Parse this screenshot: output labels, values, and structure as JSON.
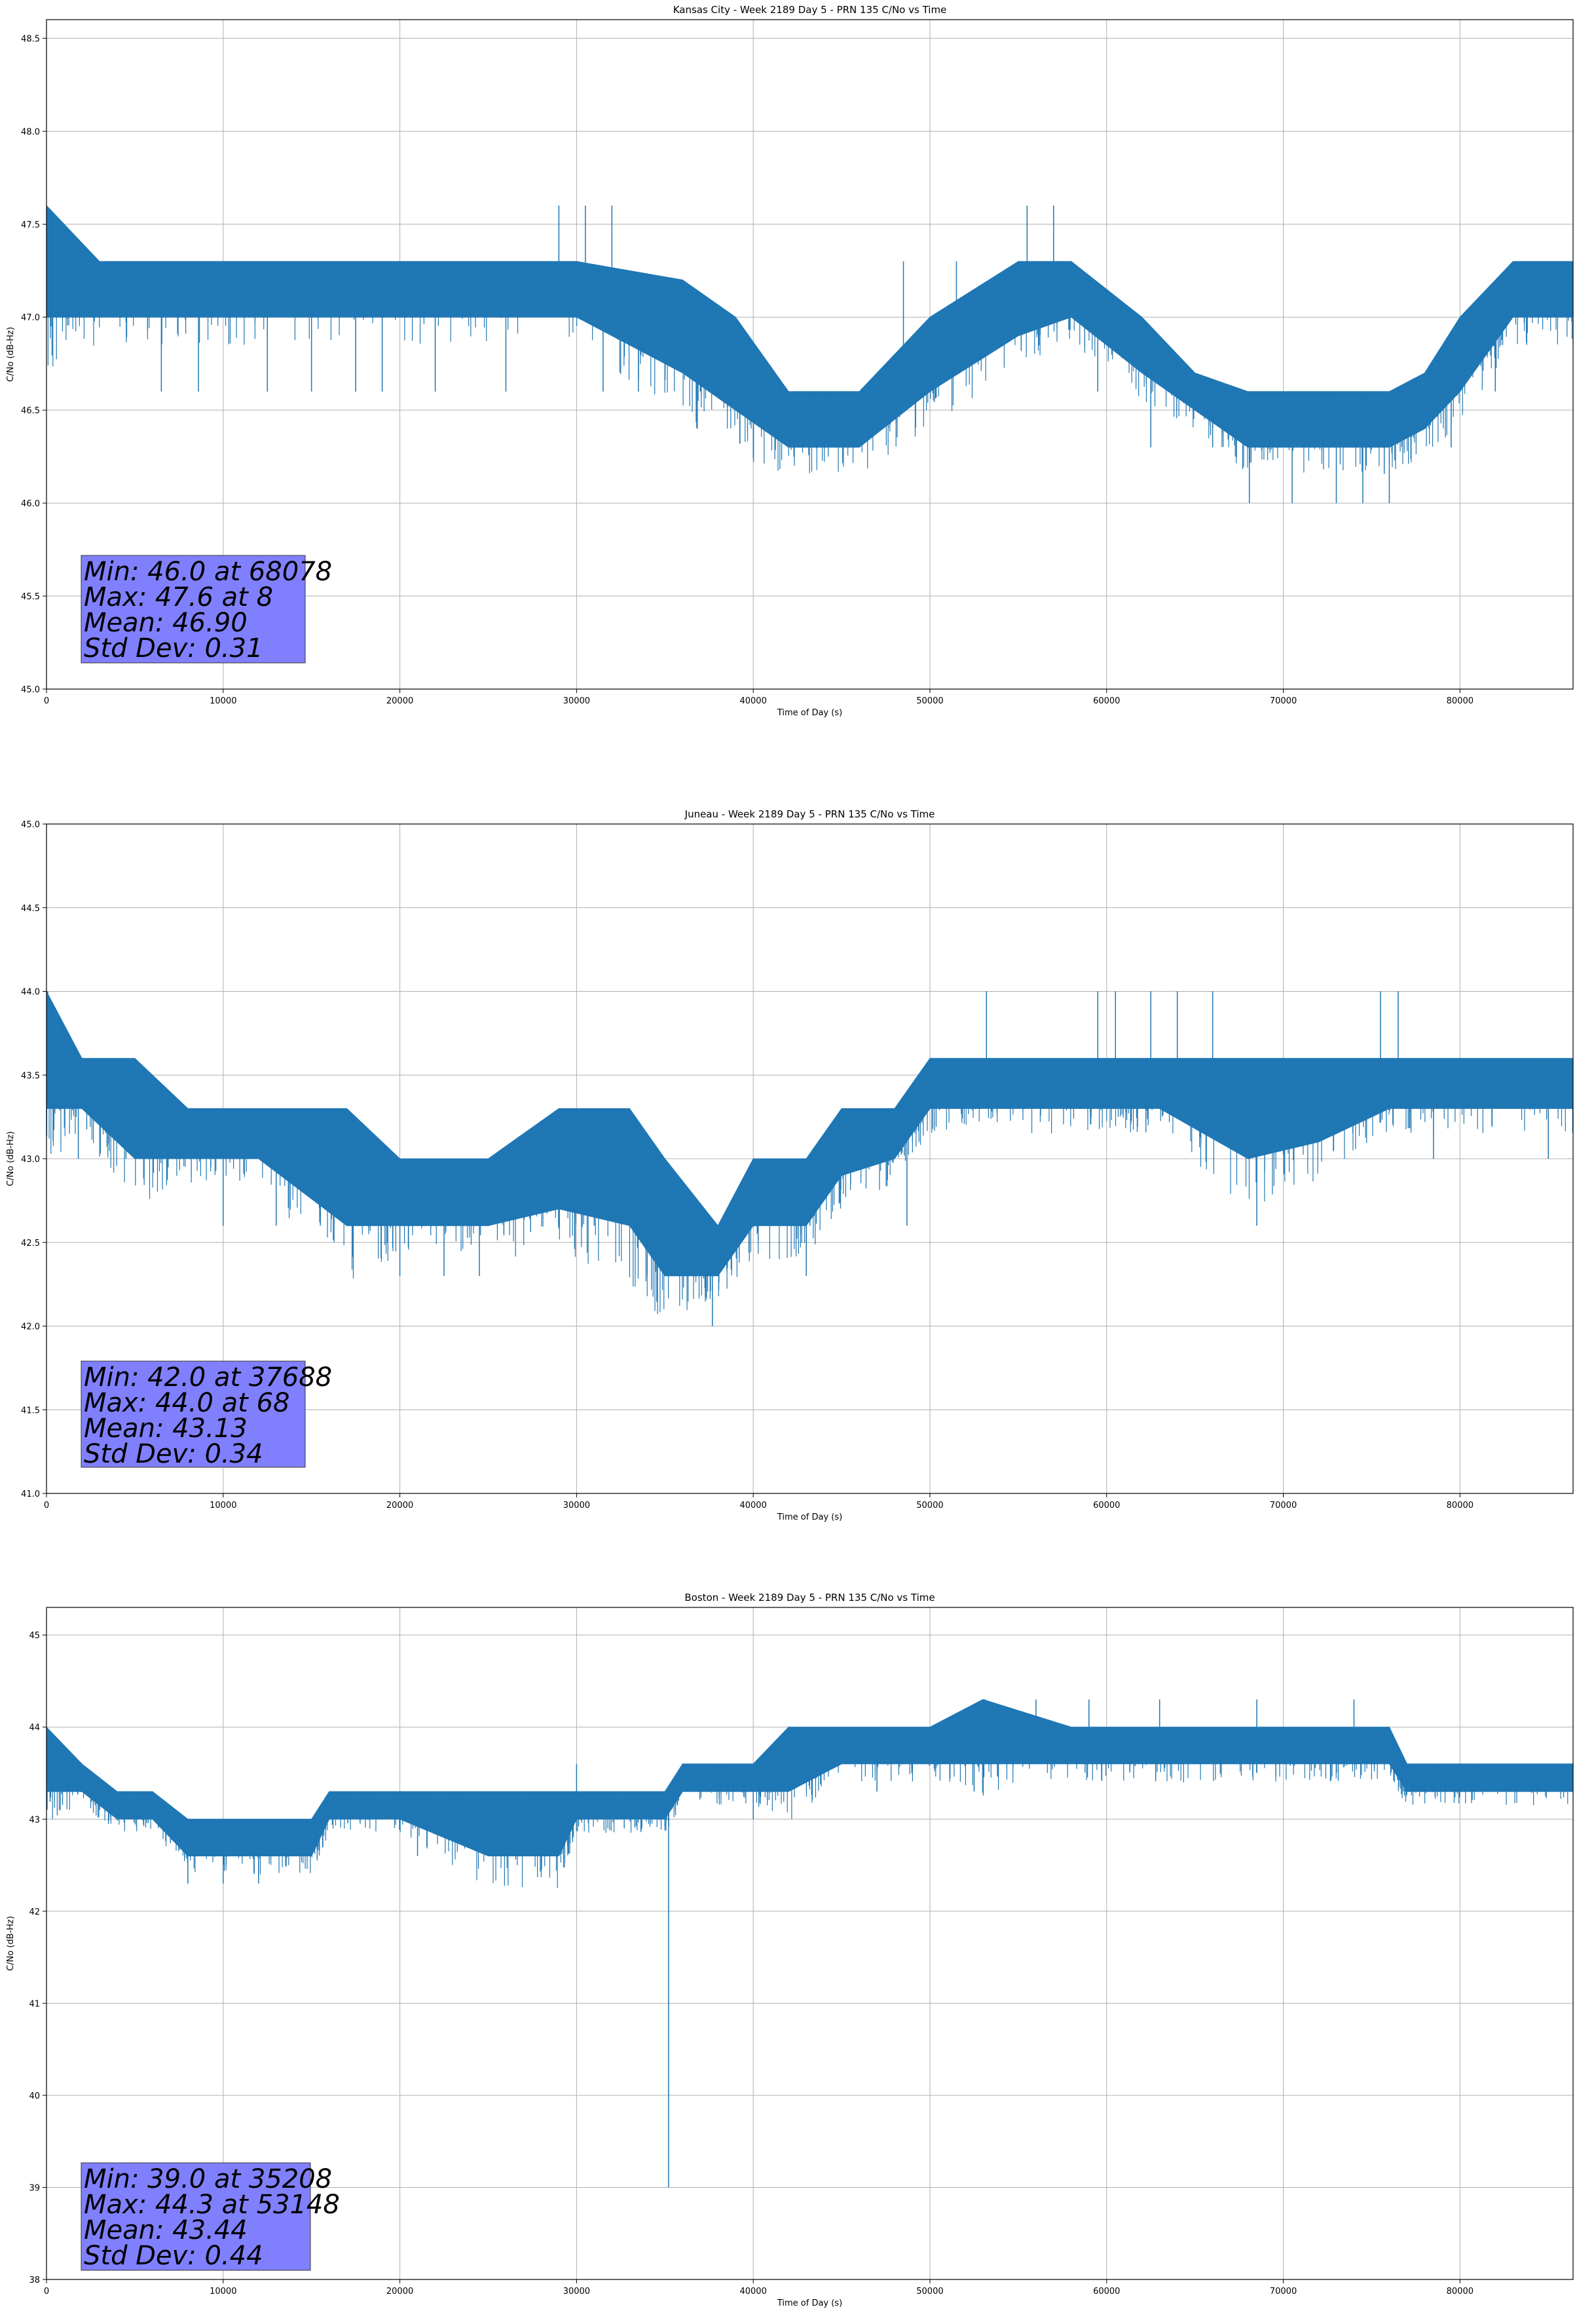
{
  "chart_data": [
    {
      "type": "line",
      "title": "Kansas City - Week 2189 Day 5 - PRN 135 C/No vs Time",
      "xlabel": "Time of Day (s)",
      "ylabel": "C/No (dB-Hz)",
      "xlim": [
        0,
        86400
      ],
      "ylim": [
        45.0,
        48.6
      ],
      "xticks": [
        0,
        10000,
        20000,
        30000,
        40000,
        50000,
        60000,
        70000,
        80000
      ],
      "yticks": [
        45.0,
        45.5,
        46.0,
        46.5,
        47.0,
        47.5,
        48.0,
        48.5
      ],
      "ytick_labels": [
        "45.0",
        "45.5",
        "46.0",
        "46.5",
        "47.0",
        "47.5",
        "48.0",
        "48.5"
      ],
      "grid": true,
      "color": "#1f77b4",
      "band": {
        "x": [
          0,
          3000,
          10000,
          20000,
          30000,
          36000,
          39000,
          42000,
          46000,
          50000,
          55000,
          58000,
          62000,
          65000,
          68000,
          72000,
          76000,
          78000,
          80000,
          83000,
          86400
        ],
        "low": [
          47.0,
          47.0,
          47.0,
          47.0,
          47.0,
          46.7,
          46.5,
          46.3,
          46.3,
          46.6,
          46.9,
          47.0,
          46.7,
          46.5,
          46.3,
          46.3,
          46.3,
          46.4,
          46.6,
          47.0,
          47.0
        ],
        "high": [
          47.6,
          47.3,
          47.3,
          47.3,
          47.3,
          47.2,
          47.0,
          46.6,
          46.6,
          47.0,
          47.3,
          47.3,
          47.0,
          46.7,
          46.6,
          46.6,
          46.6,
          46.7,
          47.0,
          47.3,
          47.3
        ]
      },
      "outliers": [
        {
          "x": 6500,
          "y": 46.6
        },
        {
          "x": 8600,
          "y": 46.6
        },
        {
          "x": 12500,
          "y": 46.6
        },
        {
          "x": 15000,
          "y": 46.6
        },
        {
          "x": 17500,
          "y": 46.6
        },
        {
          "x": 19000,
          "y": 46.6
        },
        {
          "x": 22000,
          "y": 46.6
        },
        {
          "x": 26000,
          "y": 46.6
        },
        {
          "x": 29000,
          "y": 47.6
        },
        {
          "x": 30500,
          "y": 47.6
        },
        {
          "x": 31500,
          "y": 46.6
        },
        {
          "x": 32000,
          "y": 47.6
        },
        {
          "x": 33500,
          "y": 46.6
        },
        {
          "x": 37000,
          "y": 46.6
        },
        {
          "x": 45500,
          "y": 46.3
        },
        {
          "x": 48500,
          "y": 47.3
        },
        {
          "x": 51500,
          "y": 47.3
        },
        {
          "x": 55500,
          "y": 47.6
        },
        {
          "x": 57000,
          "y": 47.6
        },
        {
          "x": 59500,
          "y": 46.6
        },
        {
          "x": 62500,
          "y": 46.3
        },
        {
          "x": 66000,
          "y": 46.3
        },
        {
          "x": 68078,
          "y": 46.0
        },
        {
          "x": 70500,
          "y": 46.0
        },
        {
          "x": 73000,
          "y": 46.0
        },
        {
          "x": 74500,
          "y": 46.0
        },
        {
          "x": 76000,
          "y": 46.0
        },
        {
          "x": 79500,
          "y": 46.3
        },
        {
          "x": 82000,
          "y": 46.6
        },
        {
          "x": 8,
          "y": 47.6
        }
      ],
      "stats": [
        "Min: 46.0 at 68078",
        "Max: 47.6 at 8",
        "Mean: 46.90",
        "Std Dev: 0.31"
      ]
    },
    {
      "type": "line",
      "title": "Juneau - Week 2189 Day 5 - PRN 135 C/No vs Time",
      "xlabel": "Time of Day (s)",
      "ylabel": "C/No (dB-Hz)",
      "xlim": [
        0,
        86400
      ],
      "ylim": [
        41.0,
        45.0
      ],
      "xticks": [
        0,
        10000,
        20000,
        30000,
        40000,
        50000,
        60000,
        70000,
        80000
      ],
      "yticks": [
        41.0,
        41.5,
        42.0,
        42.5,
        43.0,
        43.5,
        44.0,
        44.5,
        45.0
      ],
      "ytick_labels": [
        "41.0",
        "41.5",
        "42.0",
        "42.5",
        "43.0",
        "43.5",
        "44.0",
        "44.5",
        "45.0"
      ],
      "grid": true,
      "color": "#1f77b4",
      "band": {
        "x": [
          0,
          2000,
          5000,
          8000,
          12000,
          17000,
          20000,
          25000,
          29000,
          33000,
          35000,
          38000,
          40000,
          43000,
          45000,
          48000,
          50000,
          53000,
          58000,
          61000,
          63000,
          68000,
          72000,
          76000,
          80000,
          86400
        ],
        "low": [
          43.3,
          43.3,
          43.0,
          43.0,
          43.0,
          42.6,
          42.6,
          42.6,
          42.7,
          42.6,
          42.3,
          42.3,
          42.6,
          42.6,
          42.9,
          43.0,
          43.3,
          43.3,
          43.3,
          43.3,
          43.3,
          43.0,
          43.1,
          43.3,
          43.3,
          43.3
        ],
        "high": [
          44.0,
          43.6,
          43.6,
          43.3,
          43.3,
          43.3,
          43.0,
          43.0,
          43.3,
          43.3,
          43.0,
          42.6,
          43.0,
          43.0,
          43.3,
          43.3,
          43.6,
          43.6,
          43.6,
          43.6,
          43.6,
          43.6,
          43.6,
          43.6,
          43.6,
          43.6
        ]
      },
      "outliers": [
        {
          "x": 68,
          "y": 44.0
        },
        {
          "x": 1800,
          "y": 43.0
        },
        {
          "x": 4500,
          "y": 43.0
        },
        {
          "x": 10000,
          "y": 42.6
        },
        {
          "x": 13000,
          "y": 42.6
        },
        {
          "x": 15500,
          "y": 42.6
        },
        {
          "x": 20000,
          "y": 42.3
        },
        {
          "x": 22500,
          "y": 42.3
        },
        {
          "x": 24500,
          "y": 42.3
        },
        {
          "x": 29000,
          "y": 42.6
        },
        {
          "x": 31000,
          "y": 42.6
        },
        {
          "x": 34000,
          "y": 42.3
        },
        {
          "x": 37688,
          "y": 42.0
        },
        {
          "x": 43000,
          "y": 42.3
        },
        {
          "x": 48700,
          "y": 42.6
        },
        {
          "x": 53200,
          "y": 44.0
        },
        {
          "x": 59500,
          "y": 44.0
        },
        {
          "x": 60500,
          "y": 44.0
        },
        {
          "x": 62500,
          "y": 44.0
        },
        {
          "x": 64000,
          "y": 44.0
        },
        {
          "x": 66000,
          "y": 44.0
        },
        {
          "x": 68500,
          "y": 42.6
        },
        {
          "x": 75500,
          "y": 44.0
        },
        {
          "x": 76500,
          "y": 44.0
        },
        {
          "x": 78500,
          "y": 43.0
        },
        {
          "x": 85000,
          "y": 43.0
        }
      ],
      "stats": [
        "Min: 42.0 at 37688",
        "Max: 44.0 at 68",
        "Mean: 43.13",
        "Std Dev: 0.34"
      ]
    },
    {
      "type": "line",
      "title": "Boston - Week 2189 Day 5 - PRN 135 C/No vs Time",
      "xlabel": "Time of Day (s)",
      "ylabel": "C/No (dB-Hz)",
      "xlim": [
        0,
        86400
      ],
      "ylim": [
        38,
        45.3
      ],
      "xticks": [
        0,
        10000,
        20000,
        30000,
        40000,
        50000,
        60000,
        70000,
        80000
      ],
      "yticks": [
        38,
        39,
        40,
        41,
        42,
        43,
        44,
        45
      ],
      "ytick_labels": [
        "38",
        "39",
        "40",
        "41",
        "42",
        "43",
        "44",
        "45"
      ],
      "grid": true,
      "color": "#1f77b4",
      "band": {
        "x": [
          0,
          2000,
          4000,
          6000,
          8000,
          12000,
          15000,
          16000,
          20000,
          25000,
          29000,
          30000,
          33000,
          35000,
          36000,
          40000,
          42000,
          45000,
          50000,
          53000,
          58000,
          62000,
          66000,
          70000,
          73000,
          76000,
          77000,
          80000,
          86400
        ],
        "low": [
          43.3,
          43.3,
          43.0,
          43.0,
          42.6,
          42.6,
          42.6,
          43.0,
          43.0,
          42.6,
          42.6,
          43.0,
          43.0,
          43.0,
          43.3,
          43.3,
          43.3,
          43.6,
          43.6,
          43.6,
          43.6,
          43.6,
          43.6,
          43.6,
          43.6,
          43.6,
          43.3,
          43.3,
          43.3
        ],
        "high": [
          44.0,
          43.6,
          43.3,
          43.3,
          43.0,
          43.0,
          43.0,
          43.3,
          43.3,
          43.3,
          43.3,
          43.3,
          43.3,
          43.3,
          43.6,
          43.6,
          44.0,
          44.0,
          44.0,
          44.3,
          44.0,
          44.0,
          44.0,
          44.0,
          44.0,
          44.0,
          43.6,
          43.6,
          43.6
        ]
      },
      "outliers": [
        {
          "x": 8000,
          "y": 42.3
        },
        {
          "x": 10000,
          "y": 42.3
        },
        {
          "x": 12000,
          "y": 42.3
        },
        {
          "x": 21000,
          "y": 42.6
        },
        {
          "x": 26000,
          "y": 42.6
        },
        {
          "x": 30000,
          "y": 43.6
        },
        {
          "x": 35208,
          "y": 39.0
        },
        {
          "x": 40000,
          "y": 43.0
        },
        {
          "x": 47000,
          "y": 43.3
        },
        {
          "x": 52500,
          "y": 43.3
        },
        {
          "x": 53148,
          "y": 44.3
        },
        {
          "x": 56000,
          "y": 44.3
        },
        {
          "x": 59000,
          "y": 44.3
        },
        {
          "x": 63000,
          "y": 44.3
        },
        {
          "x": 68500,
          "y": 44.3
        },
        {
          "x": 74000,
          "y": 44.3
        },
        {
          "x": 81000,
          "y": 43.6
        }
      ],
      "stats": [
        "Min: 39.0 at 35208",
        "Max: 44.3 at 53148",
        "Mean: 43.44",
        "Std Dev: 0.44"
      ]
    }
  ]
}
